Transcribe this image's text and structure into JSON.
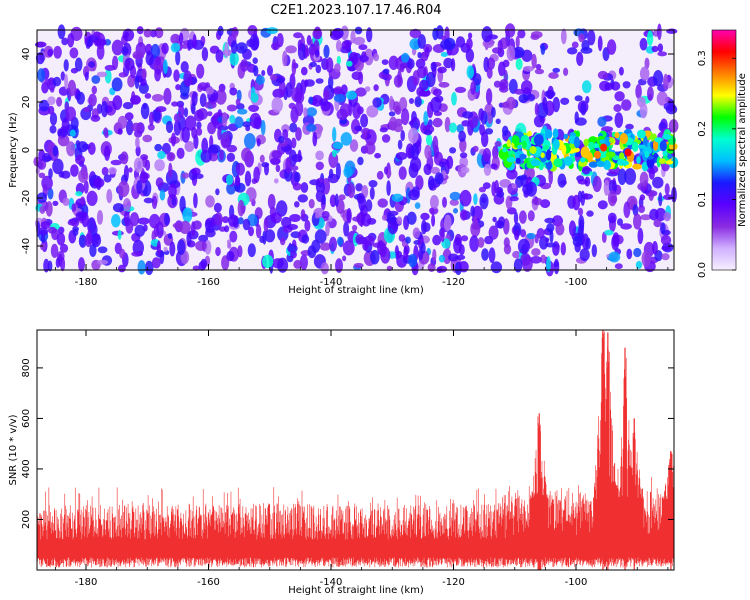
{
  "title": "C2E1.2023.107.17.46.R04",
  "chart_data": [
    {
      "type": "heatmap",
      "name": "spectrogram",
      "xlabel": "Height of straight line (km)",
      "ylabel": "Frequency (Hz)",
      "xlim": [
        -188,
        -84
      ],
      "ylim": [
        -50,
        50
      ],
      "xticks": [
        -180,
        -160,
        -140,
        -120,
        -100
      ],
      "yticks": [
        -40,
        -20,
        0,
        20,
        40
      ],
      "colorbar": {
        "label": "Normalized spectral amplitude",
        "range": [
          0,
          0.34
        ],
        "ticks": [
          0.0,
          0.1,
          0.2,
          0.3
        ],
        "colormap": [
          "#f7f0ff",
          "#cfb0ff",
          "#8a2be2",
          "#5a00ff",
          "#1a1aff",
          "#00bfff",
          "#00ffd0",
          "#00ff00",
          "#ffff00",
          "#ff8000",
          "#ff0000",
          "#ff00b0"
        ]
      },
      "features": [
        {
          "x_range": [
            -112,
            -84
          ],
          "freq_center": 0,
          "freq_halfwidth": 7,
          "peak_amplitude": 0.3
        }
      ],
      "grid": false
    },
    {
      "type": "area",
      "name": "snr",
      "xlabel": "Height of straight line (km)",
      "ylabel": "SNR (10 * v/v)",
      "xlim": [
        -188,
        -84
      ],
      "ylim": [
        0,
        950
      ],
      "xticks": [
        -180,
        -160,
        -140,
        -120,
        -100
      ],
      "yticks": [
        200,
        400,
        600,
        800
      ],
      "color": "#f03030",
      "baseline": 120,
      "typical_max": 280,
      "notable_peaks": [
        {
          "x": -106,
          "y": 620
        },
        {
          "x": -95.6,
          "y": 950
        },
        {
          "x": -94.8,
          "y": 940
        },
        {
          "x": -92,
          "y": 880
        },
        {
          "x": -90.5,
          "y": 600
        },
        {
          "x": -84.5,
          "y": 470
        }
      ],
      "grid": false
    }
  ]
}
